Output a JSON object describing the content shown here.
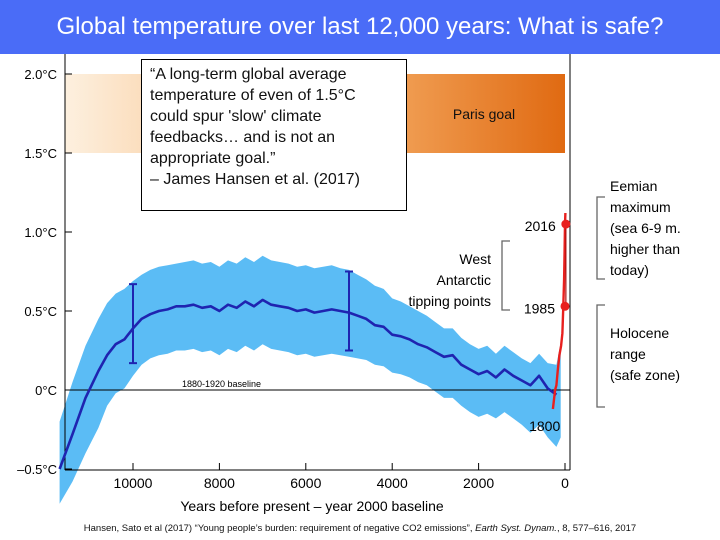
{
  "title": "Global temperature over last 12,000 years: What is safe?",
  "quote": {
    "lines": [
      "“A long-term global average",
      "temperature of even of 1.5°C",
      "could spur 'slow' climate",
      "feedbacks… and is not an",
      "appropriate goal.”",
      " – James Hansen et al. (2017)"
    ]
  },
  "citation": {
    "pre": "Hansen, Sato et al (2017) “Young people’s burden: requirement of negative CO2 emissions”, ",
    "journal": "Earth Syst. Dynam.",
    "post": ", 8, 577–616, 2017"
  },
  "colors": {
    "band": "#5bbcf5",
    "mean_line": "#1f24b0",
    "modern": "#e8201e",
    "paris_left": "#fdf0df",
    "paris_right": "#e06a12",
    "title_bg": "#4a6cf7"
  },
  "chart_data": {
    "type": "line",
    "xlabel": "Years before present – year 2000 baseline",
    "ylabel": "",
    "xlim": [
      11800,
      -100
    ],
    "ylim": [
      -0.55,
      2.1
    ],
    "x_ticks": [
      {
        "value": 10000,
        "label": "10000"
      },
      {
        "value": 8000,
        "label": "8000"
      },
      {
        "value": 6000,
        "label": "6000"
      },
      {
        "value": 4000,
        "label": "4000"
      },
      {
        "value": 2000,
        "label": "2000"
      },
      {
        "value": 0,
        "label": "0"
      }
    ],
    "y_ticks": [
      {
        "value": -0.5,
        "label": "–0.5°C"
      },
      {
        "value": 0,
        "label": "0°C"
      },
      {
        "value": 0.5,
        "label": "0.5°C"
      },
      {
        "value": 1.0,
        "label": "1.0°C"
      },
      {
        "value": 1.5,
        "label": "1.5°C"
      },
      {
        "value": 2.0,
        "label": "2.0°C"
      }
    ],
    "baseline_label": "1880-1920 baseline",
    "paris_band": {
      "range": [
        1.5,
        2.0
      ],
      "label": "Paris goal"
    },
    "series": [
      {
        "x": [
          11700,
          11400,
          11100,
          10800,
          10600,
          10400,
          10200,
          10000,
          9800,
          9600,
          9400,
          9200,
          9000,
          8800,
          8600,
          8400,
          8200,
          8000,
          7800,
          7600,
          7400,
          7200,
          7000,
          6800,
          6600,
          6400,
          6200,
          6000,
          5800,
          5600,
          5400,
          5200,
          5000,
          4800,
          4600,
          4400,
          4200,
          4000,
          3800,
          3600,
          3400,
          3200,
          3000,
          2800,
          2600,
          2400,
          2200,
          2000,
          1800,
          1600,
          1400,
          1200,
          1000,
          800,
          600,
          400,
          200
        ],
        "y": [
          -0.5,
          -0.28,
          -0.05,
          0.12,
          0.22,
          0.29,
          0.32,
          0.39,
          0.45,
          0.48,
          0.5,
          0.51,
          0.53,
          0.53,
          0.54,
          0.52,
          0.53,
          0.5,
          0.54,
          0.52,
          0.56,
          0.53,
          0.57,
          0.54,
          0.53,
          0.52,
          0.5,
          0.51,
          0.49,
          0.5,
          0.51,
          0.5,
          0.49,
          0.47,
          0.45,
          0.41,
          0.4,
          0.35,
          0.34,
          0.32,
          0.29,
          0.27,
          0.24,
          0.21,
          0.22,
          0.16,
          0.13,
          0.1,
          0.12,
          0.08,
          0.13,
          0.09,
          0.06,
          0.03,
          0.09,
          0.01,
          -0.03
        ]
      }
    ],
    "uncertainty": {
      "x": [
        11700,
        11400,
        11100,
        10800,
        10600,
        10400,
        10200,
        10000,
        9800,
        9600,
        9400,
        9200,
        9000,
        8800,
        8600,
        8400,
        8200,
        8000,
        7800,
        7600,
        7400,
        7200,
        7000,
        6800,
        6600,
        6400,
        6200,
        6000,
        5800,
        5600,
        5400,
        5200,
        5000,
        4800,
        4600,
        4400,
        4200,
        4000,
        3800,
        3600,
        3400,
        3200,
        3000,
        2800,
        2600,
        2400,
        2200,
        2000,
        1800,
        1600,
        1400,
        1200,
        1000,
        800,
        600,
        400,
        200,
        100
      ],
      "upper": [
        -0.2,
        0.05,
        0.28,
        0.45,
        0.55,
        0.61,
        0.64,
        0.69,
        0.73,
        0.76,
        0.78,
        0.79,
        0.8,
        0.81,
        0.82,
        0.8,
        0.81,
        0.78,
        0.82,
        0.8,
        0.84,
        0.81,
        0.85,
        0.82,
        0.81,
        0.8,
        0.78,
        0.79,
        0.77,
        0.78,
        0.79,
        0.77,
        0.76,
        0.73,
        0.7,
        0.66,
        0.64,
        0.58,
        0.56,
        0.53,
        0.5,
        0.47,
        0.43,
        0.39,
        0.39,
        0.33,
        0.29,
        0.26,
        0.28,
        0.23,
        0.28,
        0.24,
        0.2,
        0.17,
        0.23,
        0.17,
        0.16,
        0.3
      ],
      "lower": [
        -0.72,
        -0.58,
        -0.4,
        -0.24,
        -0.1,
        -0.02,
        0.01,
        0.09,
        0.16,
        0.2,
        0.22,
        0.23,
        0.25,
        0.25,
        0.26,
        0.24,
        0.25,
        0.22,
        0.26,
        0.24,
        0.28,
        0.25,
        0.29,
        0.26,
        0.25,
        0.24,
        0.22,
        0.23,
        0.21,
        0.22,
        0.23,
        0.22,
        0.21,
        0.2,
        0.19,
        0.16,
        0.15,
        0.11,
        0.1,
        0.08,
        0.05,
        0.03,
        -0.01,
        -0.05,
        -0.05,
        -0.1,
        -0.14,
        -0.17,
        -0.15,
        -0.18,
        -0.14,
        -0.18,
        -0.22,
        -0.27,
        -0.22,
        -0.3,
        -0.36,
        -0.3
      ]
    },
    "error_bars": [
      {
        "x": 10000,
        "low": 0.17,
        "high": 0.67
      },
      {
        "x": 5000,
        "low": 0.25,
        "high": 0.75
      }
    ],
    "modern_series": {
      "x": [
        280,
        230,
        200,
        170,
        130,
        90,
        60,
        40,
        20,
        10,
        0,
        -10
      ],
      "y": [
        -0.12,
        0.0,
        0.03,
        0.12,
        0.22,
        0.28,
        0.36,
        0.53,
        0.7,
        0.88,
        1.05,
        1.12
      ]
    },
    "points": [
      {
        "label": "2016",
        "x": -20,
        "y": 1.05
      },
      {
        "label": "1985",
        "x": 0,
        "y": 0.53
      },
      {
        "label": "1800",
        "x": 100,
        "y": -0.12
      }
    ],
    "annotations": {
      "west_antarctic": [
        "West",
        "Antarctic",
        "tipping points"
      ],
      "eemian": [
        "Eemian",
        "maximum",
        "(sea 6-9 m.",
        "higher than",
        "today)"
      ],
      "holocene": [
        "Holocene",
        "range",
        "(safe zone)"
      ]
    }
  }
}
